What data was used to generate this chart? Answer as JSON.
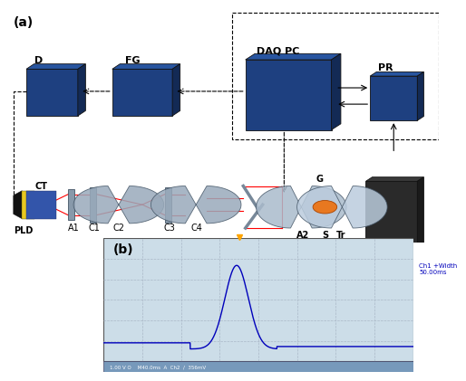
{
  "bg_color": "#ffffff",
  "box_color": "#1e4080",
  "box_top_color": "#2855a0",
  "box_right_color": "#132a55",
  "panel_a_label": "(a)",
  "panel_b_label": "(b)",
  "lfs": 7,
  "osc": {
    "bg": "#ccdde8",
    "grid_color": "#aab8c8",
    "signal_color": "#0000bb",
    "bottom_bar": "#8899aa",
    "annotation": "Ch1 +Width\n50.00ms",
    "bottom_text": "1.00 V O    M40.0ms  A  Ch2  /  356mV"
  }
}
